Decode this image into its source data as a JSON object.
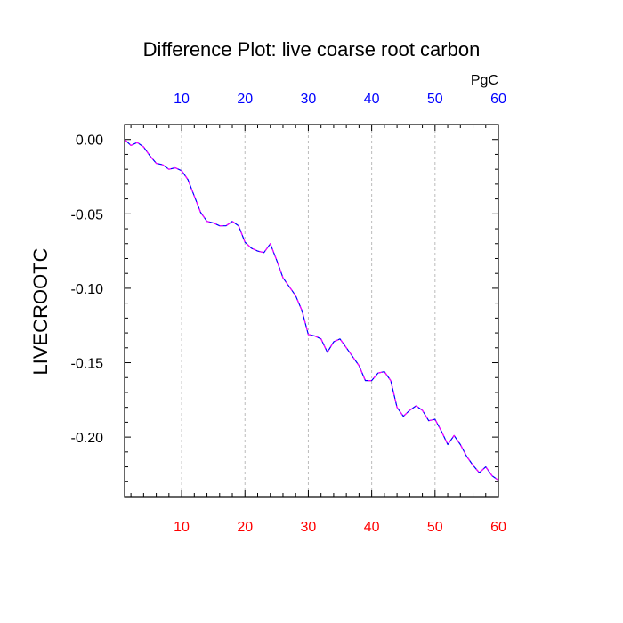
{
  "chart_data": {
    "type": "line",
    "title": "Difference Plot: live coarse root carbon",
    "units_label": "PgC",
    "ylabel": "LIVECROOTC",
    "xlabel": "",
    "xlim": [
      1,
      60
    ],
    "ylim": [
      -0.24,
      0.01
    ],
    "x_ticks": [
      10,
      20,
      30,
      40,
      50,
      60
    ],
    "x_tick_labels": [
      "10",
      "20",
      "30",
      "40",
      "50",
      "60"
    ],
    "y_ticks": [
      0.0,
      -0.05,
      -0.1,
      -0.15,
      -0.2
    ],
    "y_tick_labels": [
      "0.00",
      "-0.05",
      "-0.10",
      "-0.15",
      "-0.20"
    ],
    "grid": "vertical dashed at x ticks",
    "bottom_axis_color": "#ff0000",
    "top_axis_color": "#0000ff",
    "series": [
      {
        "color": "#0000ff",
        "dash_color": "#ff00ff",
        "x": [
          1,
          2,
          3,
          4,
          5,
          6,
          7,
          8,
          9,
          10,
          11,
          12,
          13,
          14,
          15,
          16,
          17,
          18,
          19,
          20,
          21,
          22,
          23,
          24,
          25,
          26,
          27,
          28,
          29,
          30,
          31,
          32,
          33,
          34,
          35,
          36,
          37,
          38,
          39,
          40,
          41,
          42,
          43,
          44,
          45,
          46,
          47,
          48,
          49,
          50,
          51,
          52,
          53,
          54,
          55,
          56,
          57,
          58,
          59,
          60
        ],
        "values": [
          0.0,
          -0.004,
          -0.002,
          -0.005,
          -0.011,
          -0.016,
          -0.017,
          -0.02,
          -0.019,
          -0.021,
          -0.027,
          -0.038,
          -0.049,
          -0.055,
          -0.056,
          -0.058,
          -0.058,
          -0.055,
          -0.058,
          -0.069,
          -0.073,
          -0.075,
          -0.076,
          -0.07,
          -0.081,
          -0.093,
          -0.099,
          -0.105,
          -0.115,
          -0.131,
          -0.132,
          -0.134,
          -0.143,
          -0.136,
          -0.134,
          -0.14,
          -0.146,
          -0.152,
          -0.162,
          -0.162,
          -0.157,
          -0.156,
          -0.162,
          -0.18,
          -0.186,
          -0.182,
          -0.179,
          -0.182,
          -0.189,
          -0.188,
          -0.196,
          -0.205,
          -0.199,
          -0.205,
          -0.213,
          -0.219,
          -0.224,
          -0.22,
          -0.226,
          -0.229
        ]
      }
    ]
  }
}
